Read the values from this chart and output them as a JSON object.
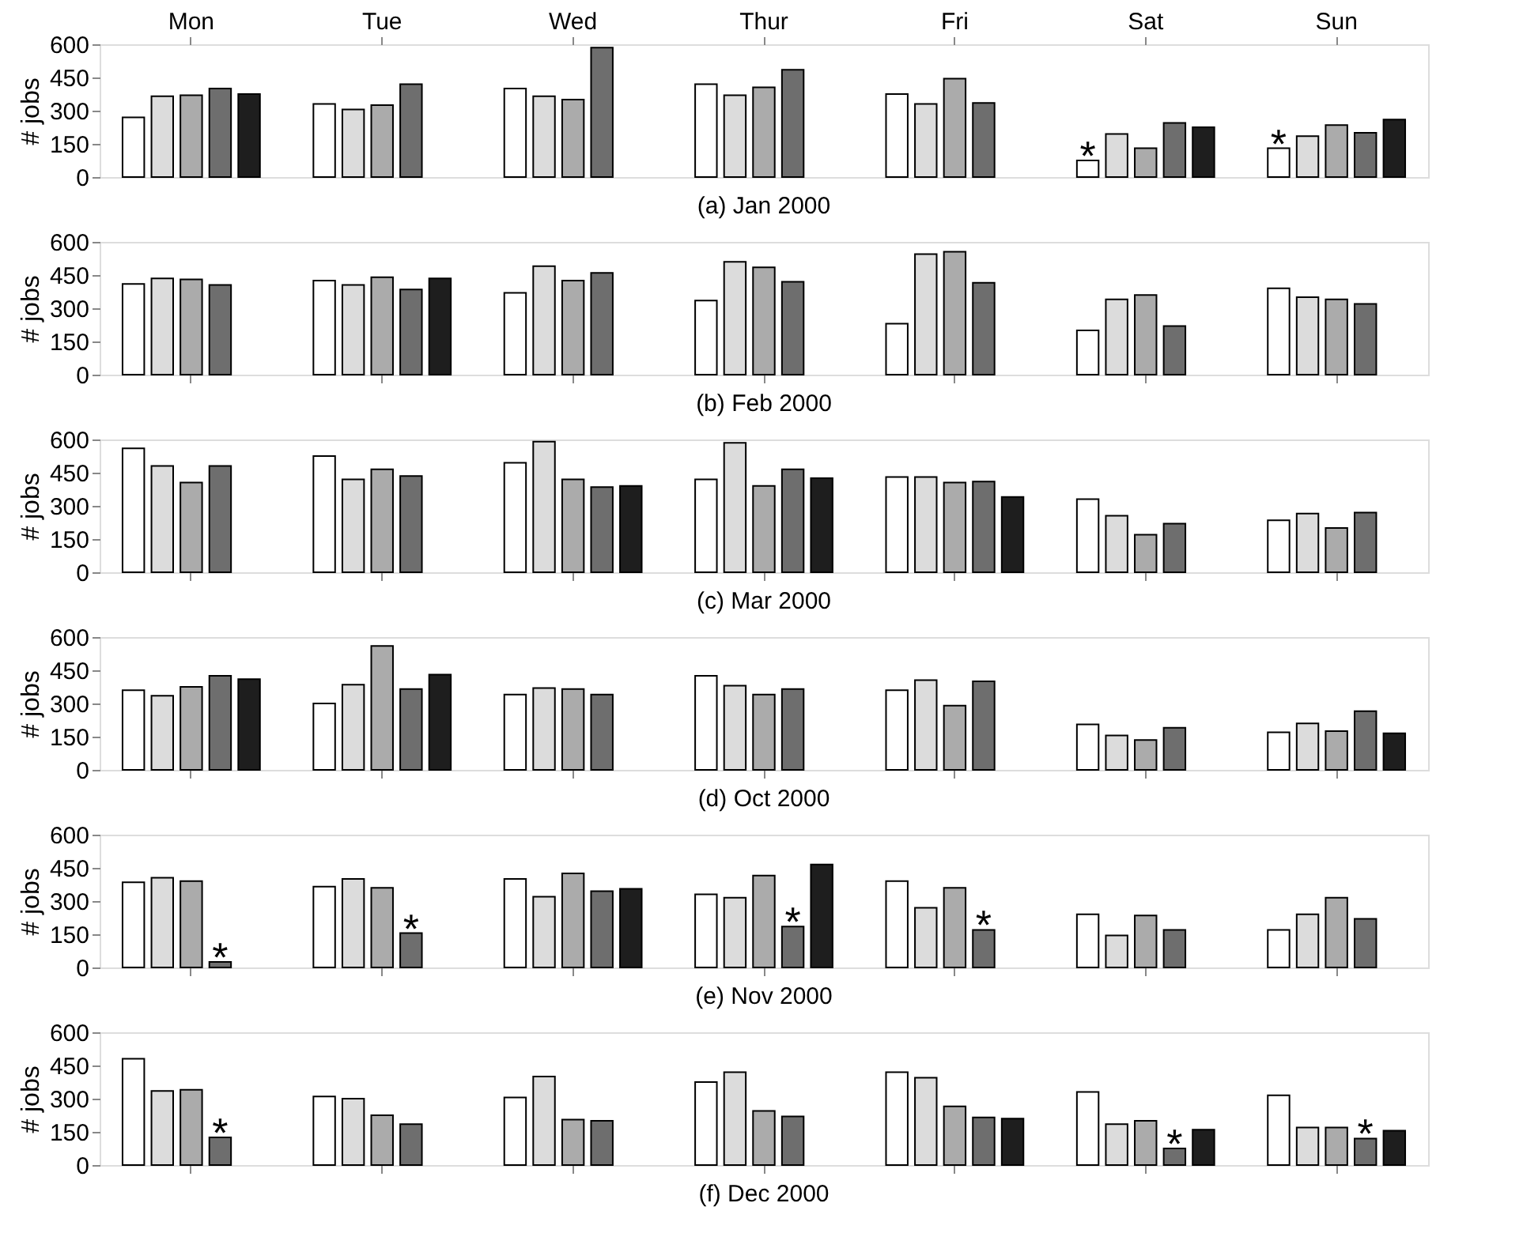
{
  "chart_data": [
    {
      "type": "bar",
      "xlabel": "(a) Jan 2000",
      "ylabel": "# jobs",
      "categories": [
        "Mon",
        "Tue",
        "Wed",
        "Thur",
        "Fri",
        "Sat",
        "Sun"
      ],
      "ylim": [
        0,
        600
      ],
      "yticks": [
        0,
        150,
        300,
        450,
        600
      ],
      "grid": false,
      "legend": false,
      "series": [
        {
          "color": "#ffffff",
          "values": [
            270,
            330,
            400,
            420,
            375,
            75,
            130
          ],
          "value_labels": [
            null,
            null,
            null,
            null,
            null,
            "*",
            "*"
          ]
        },
        {
          "color": "#dcdcdc",
          "values": [
            365,
            305,
            365,
            370,
            330,
            195,
            185
          ]
        },
        {
          "color": "#ababab",
          "values": [
            370,
            325,
            350,
            405,
            445,
            130,
            235
          ]
        },
        {
          "color": "#6e6e6e",
          "values": [
            400,
            420,
            585,
            485,
            335,
            245,
            200
          ]
        },
        {
          "color": "#1e1e1e",
          "values": [
            375,
            null,
            null,
            null,
            null,
            225,
            260
          ]
        }
      ]
    },
    {
      "type": "bar",
      "xlabel": "(b) Feb 2000",
      "ylabel": "# jobs",
      "categories": [
        null,
        null,
        null,
        null,
        null,
        null,
        null
      ],
      "ylim": [
        0,
        600
      ],
      "yticks": [
        0,
        150,
        300,
        450,
        600
      ],
      "grid": false,
      "legend": false,
      "tick_labels": "y",
      "series": [
        {
          "color": "#ffffff",
          "values": [
            410,
            425,
            370,
            335,
            230,
            200,
            390
          ]
        },
        {
          "color": "#dcdcdc",
          "values": [
            435,
            405,
            490,
            510,
            545,
            340,
            350
          ]
        },
        {
          "color": "#ababab",
          "values": [
            430,
            440,
            425,
            485,
            555,
            360,
            340
          ]
        },
        {
          "color": "#6e6e6e",
          "values": [
            405,
            385,
            460,
            420,
            415,
            220,
            320
          ]
        },
        {
          "color": "#1e1e1e",
          "values": [
            null,
            435,
            null,
            null,
            null,
            null,
            null
          ]
        }
      ]
    },
    {
      "type": "bar",
      "xlabel": "(c) Mar 2000",
      "ylabel": "# jobs",
      "categories": [
        null,
        null,
        null,
        null,
        null,
        null,
        null
      ],
      "ylim": [
        0,
        600
      ],
      "yticks": [
        0,
        150,
        300,
        450,
        600
      ],
      "grid": false,
      "legend": false,
      "tick_labels": "y",
      "series": [
        {
          "color": "#ffffff",
          "values": [
            560,
            525,
            495,
            420,
            430,
            330,
            235
          ]
        },
        {
          "color": "#dcdcdc",
          "values": [
            480,
            420,
            590,
            585,
            430,
            255,
            265
          ]
        },
        {
          "color": "#ababab",
          "values": [
            405,
            465,
            420,
            390,
            405,
            170,
            200
          ]
        },
        {
          "color": "#6e6e6e",
          "values": [
            480,
            435,
            385,
            465,
            410,
            220,
            270
          ]
        },
        {
          "color": "#1e1e1e",
          "values": [
            null,
            null,
            390,
            425,
            340,
            null,
            null
          ]
        }
      ]
    },
    {
      "type": "bar",
      "xlabel": "(d) Oct 2000",
      "ylabel": "# jobs",
      "categories": [
        null,
        null,
        null,
        null,
        null,
        null,
        null
      ],
      "ylim": [
        0,
        600
      ],
      "yticks": [
        0,
        150,
        300,
        450,
        600
      ],
      "grid": false,
      "legend": false,
      "tick_labels": "y",
      "series": [
        {
          "color": "#ffffff",
          "values": [
            360,
            300,
            340,
            425,
            360,
            205,
            170
          ]
        },
        {
          "color": "#dcdcdc",
          "values": [
            335,
            385,
            370,
            380,
            405,
            155,
            210
          ]
        },
        {
          "color": "#ababab",
          "values": [
            375,
            560,
            365,
            340,
            290,
            135,
            175
          ]
        },
        {
          "color": "#6e6e6e",
          "values": [
            425,
            365,
            340,
            365,
            400,
            190,
            265
          ]
        },
        {
          "color": "#1e1e1e",
          "values": [
            410,
            430,
            null,
            null,
            null,
            null,
            165
          ]
        }
      ]
    },
    {
      "type": "bar",
      "xlabel": "(e) Nov 2000",
      "ylabel": "# jobs",
      "categories": [
        null,
        null,
        null,
        null,
        null,
        null,
        null
      ],
      "ylim": [
        0,
        600
      ],
      "yticks": [
        0,
        150,
        300,
        450,
        600
      ],
      "grid": false,
      "legend": false,
      "tick_labels": "y",
      "series": [
        {
          "color": "#ffffff",
          "values": [
            385,
            365,
            400,
            330,
            390,
            240,
            170
          ]
        },
        {
          "color": "#dcdcdc",
          "values": [
            405,
            400,
            320,
            315,
            270,
            145,
            240
          ]
        },
        {
          "color": "#ababab",
          "values": [
            390,
            360,
            425,
            415,
            360,
            235,
            315
          ]
        },
        {
          "color": "#6e6e6e",
          "values": [
            25,
            155,
            345,
            185,
            170,
            170,
            220
          ],
          "value_labels": [
            "*",
            "*",
            null,
            "*",
            "*",
            null,
            null
          ]
        },
        {
          "color": "#1e1e1e",
          "values": [
            null,
            null,
            355,
            465,
            null,
            null,
            null
          ]
        }
      ]
    },
    {
      "type": "bar",
      "xlabel": "(f) Dec 2000",
      "ylabel": "# jobs",
      "categories": [
        null,
        null,
        null,
        null,
        null,
        null,
        null
      ],
      "ylim": [
        0,
        600
      ],
      "yticks": [
        0,
        150,
        300,
        450,
        600
      ],
      "grid": false,
      "legend": false,
      "tick_labels": "y",
      "series": [
        {
          "color": "#ffffff",
          "values": [
            480,
            310,
            305,
            375,
            420,
            330,
            315
          ]
        },
        {
          "color": "#dcdcdc",
          "values": [
            335,
            300,
            400,
            420,
            395,
            185,
            170
          ]
        },
        {
          "color": "#ababab",
          "values": [
            340,
            225,
            205,
            245,
            265,
            200,
            170
          ]
        },
        {
          "color": "#6e6e6e",
          "values": [
            125,
            185,
            200,
            220,
            215,
            75,
            120
          ],
          "value_labels": [
            "*",
            null,
            null,
            null,
            null,
            "*",
            "*"
          ]
        },
        {
          "color": "#1e1e1e",
          "values": [
            null,
            null,
            null,
            null,
            210,
            160,
            155
          ]
        }
      ]
    }
  ]
}
